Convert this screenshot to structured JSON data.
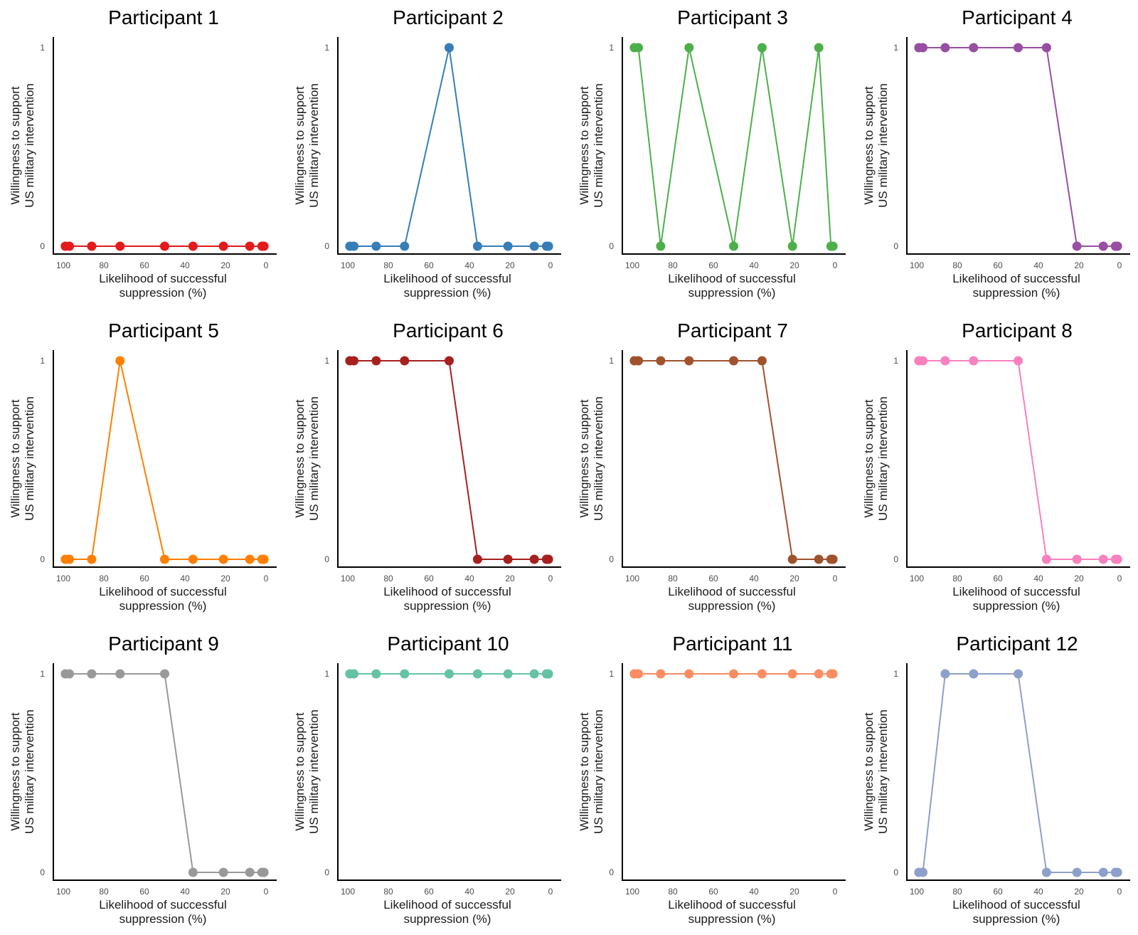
{
  "chart_data": [
    {
      "type": "line",
      "title": "Participant 1",
      "xlabel": [
        "Likelihood of successful",
        "suppression (%)"
      ],
      "ylabel": [
        "Willingness to support",
        "US military intervention"
      ],
      "color": "#e41a1c",
      "xlim": [
        100,
        0
      ],
      "ylim": [
        0,
        1
      ],
      "xticks": [
        100,
        80,
        60,
        40,
        20,
        0
      ],
      "yticks": [
        0,
        1
      ],
      "grid": false,
      "legend": "none",
      "x": [
        99,
        97,
        86,
        72,
        50,
        36,
        21,
        8,
        2,
        1
      ],
      "y": [
        0,
        0,
        0,
        0,
        0,
        0,
        0,
        0,
        0,
        0
      ]
    },
    {
      "type": "line",
      "title": "Participant 2",
      "xlabel": [
        "Likelihood of successful",
        "suppression (%)"
      ],
      "ylabel": [
        "Willingness to support",
        "US military intervention"
      ],
      "color": "#377eb8",
      "xlim": [
        100,
        0
      ],
      "ylim": [
        0,
        1
      ],
      "xticks": [
        100,
        80,
        60,
        40,
        20,
        0
      ],
      "yticks": [
        0,
        1
      ],
      "grid": false,
      "legend": "none",
      "x": [
        99,
        97,
        86,
        72,
        50,
        36,
        21,
        8,
        2,
        1
      ],
      "y": [
        0,
        0,
        0,
        0,
        1,
        0,
        0,
        0,
        0,
        0
      ]
    },
    {
      "type": "line",
      "title": "Participant 3",
      "xlabel": [
        "Likelihood of successful",
        "suppression (%)"
      ],
      "ylabel": [
        "Willingness to support",
        "US military intervention"
      ],
      "color": "#4daf4a",
      "xlim": [
        100,
        0
      ],
      "ylim": [
        0,
        1
      ],
      "xticks": [
        100,
        80,
        60,
        40,
        20,
        0
      ],
      "yticks": [
        0,
        1
      ],
      "grid": false,
      "legend": "none",
      "x": [
        99,
        97,
        86,
        72,
        50,
        36,
        21,
        8,
        2,
        1
      ],
      "y": [
        1,
        1,
        0,
        1,
        0,
        1,
        0,
        1,
        0,
        0
      ]
    },
    {
      "type": "line",
      "title": "Participant 4",
      "xlabel": [
        "Likelihood of successful",
        "suppression (%)"
      ],
      "ylabel": [
        "Willingness to support",
        "US military intervention"
      ],
      "color": "#984ea3",
      "xlim": [
        100,
        0
      ],
      "ylim": [
        0,
        1
      ],
      "xticks": [
        100,
        80,
        60,
        40,
        20,
        0
      ],
      "yticks": [
        0,
        1
      ],
      "grid": false,
      "legend": "none",
      "x": [
        99,
        97,
        86,
        72,
        50,
        36,
        21,
        8,
        2,
        1
      ],
      "y": [
        1,
        1,
        1,
        1,
        1,
        1,
        0,
        0,
        0,
        0
      ]
    },
    {
      "type": "line",
      "title": "Participant 5",
      "xlabel": [
        "Likelihood of successful",
        "suppression (%)"
      ],
      "ylabel": [
        "Willingness to support",
        "US military intervention"
      ],
      "color": "#ff7f00",
      "xlim": [
        100,
        0
      ],
      "ylim": [
        0,
        1
      ],
      "xticks": [
        100,
        80,
        60,
        40,
        20,
        0
      ],
      "yticks": [
        0,
        1
      ],
      "grid": false,
      "legend": "none",
      "x": [
        99,
        97,
        86,
        72,
        50,
        36,
        21,
        8,
        2,
        1
      ],
      "y": [
        0,
        0,
        0,
        1,
        0,
        0,
        0,
        0,
        0,
        0
      ]
    },
    {
      "type": "line",
      "title": "Participant 6",
      "xlabel": [
        "Likelihood of successful",
        "suppression (%)"
      ],
      "ylabel": [
        "Willingness to support",
        "US military intervention"
      ],
      "color": "#a6211e",
      "xlim": [
        100,
        0
      ],
      "ylim": [
        0,
        1
      ],
      "xticks": [
        100,
        80,
        60,
        40,
        20,
        0
      ],
      "yticks": [
        0,
        1
      ],
      "grid": false,
      "legend": "none",
      "x": [
        99,
        97,
        86,
        72,
        50,
        36,
        21,
        8,
        2,
        1
      ],
      "y": [
        1,
        1,
        1,
        1,
        1,
        0,
        0,
        0,
        0,
        0
      ]
    },
    {
      "type": "line",
      "title": "Participant 7",
      "xlabel": [
        "Likelihood of successful",
        "suppression (%)"
      ],
      "ylabel": [
        "Willingness to support",
        "US military intervention"
      ],
      "color": "#a0522d",
      "xlim": [
        100,
        0
      ],
      "ylim": [
        0,
        1
      ],
      "xticks": [
        100,
        80,
        60,
        40,
        20,
        0
      ],
      "yticks": [
        0,
        1
      ],
      "grid": false,
      "legend": "none",
      "x": [
        99,
        97,
        86,
        72,
        50,
        36,
        21,
        8,
        2,
        1
      ],
      "y": [
        1,
        1,
        1,
        1,
        1,
        1,
        0,
        0,
        0,
        0
      ]
    },
    {
      "type": "line",
      "title": "Participant 8",
      "xlabel": [
        "Likelihood of successful",
        "suppression (%)"
      ],
      "ylabel": [
        "Willingness to support",
        "US military intervention"
      ],
      "color": "#f781bf",
      "xlim": [
        100,
        0
      ],
      "ylim": [
        0,
        1
      ],
      "xticks": [
        100,
        80,
        60,
        40,
        20,
        0
      ],
      "yticks": [
        0,
        1
      ],
      "grid": false,
      "legend": "none",
      "x": [
        99,
        97,
        86,
        72,
        50,
        36,
        21,
        8,
        2,
        1
      ],
      "y": [
        1,
        1,
        1,
        1,
        1,
        0,
        0,
        0,
        0,
        0
      ]
    },
    {
      "type": "line",
      "title": "Participant 9",
      "xlabel": [
        "Likelihood of successful",
        "suppression (%)"
      ],
      "ylabel": [
        "Willingness to support",
        "US military intervention"
      ],
      "color": "#999999",
      "xlim": [
        100,
        0
      ],
      "ylim": [
        0,
        1
      ],
      "xticks": [
        100,
        80,
        60,
        40,
        20,
        0
      ],
      "yticks": [
        0,
        1
      ],
      "grid": false,
      "legend": "none",
      "x": [
        99,
        97,
        86,
        72,
        50,
        36,
        21,
        8,
        2,
        1
      ],
      "y": [
        1,
        1,
        1,
        1,
        1,
        0,
        0,
        0,
        0,
        0
      ]
    },
    {
      "type": "line",
      "title": "Participant 10",
      "xlabel": [
        "Likelihood of successful",
        "suppression (%)"
      ],
      "ylabel": [
        "Willingness to support",
        "US military intervention"
      ],
      "color": "#66c2a5",
      "xlim": [
        100,
        0
      ],
      "ylim": [
        0,
        1
      ],
      "xticks": [
        100,
        80,
        60,
        40,
        20,
        0
      ],
      "yticks": [
        0,
        1
      ],
      "grid": false,
      "legend": "none",
      "x": [
        99,
        97,
        86,
        72,
        50,
        36,
        21,
        8,
        2,
        1
      ],
      "y": [
        1,
        1,
        1,
        1,
        1,
        1,
        1,
        1,
        1,
        1
      ]
    },
    {
      "type": "line",
      "title": "Participant 11",
      "xlabel": [
        "Likelihood of successful",
        "suppression (%)"
      ],
      "ylabel": [
        "Willingness to support",
        "US military intervention"
      ],
      "color": "#fc8d62",
      "xlim": [
        100,
        0
      ],
      "ylim": [
        0,
        1
      ],
      "xticks": [
        100,
        80,
        60,
        40,
        20,
        0
      ],
      "yticks": [
        0,
        1
      ],
      "grid": false,
      "legend": "none",
      "x": [
        99,
        97,
        86,
        72,
        50,
        36,
        21,
        8,
        2,
        1
      ],
      "y": [
        1,
        1,
        1,
        1,
        1,
        1,
        1,
        1,
        1,
        1
      ]
    },
    {
      "type": "line",
      "title": "Participant 12",
      "xlabel": [
        "Likelihood of successful",
        "suppression (%)"
      ],
      "ylabel": [
        "Willingness to support",
        "US military intervention"
      ],
      "color": "#8da0cb",
      "xlim": [
        100,
        0
      ],
      "ylim": [
        0,
        1
      ],
      "xticks": [
        100,
        80,
        60,
        40,
        20,
        0
      ],
      "yticks": [
        0,
        1
      ],
      "grid": false,
      "legend": "none",
      "x": [
        99,
        97,
        86,
        72,
        50,
        36,
        21,
        8,
        2,
        1
      ],
      "y": [
        0,
        0,
        1,
        1,
        1,
        0,
        0,
        0,
        0,
        0
      ]
    }
  ]
}
